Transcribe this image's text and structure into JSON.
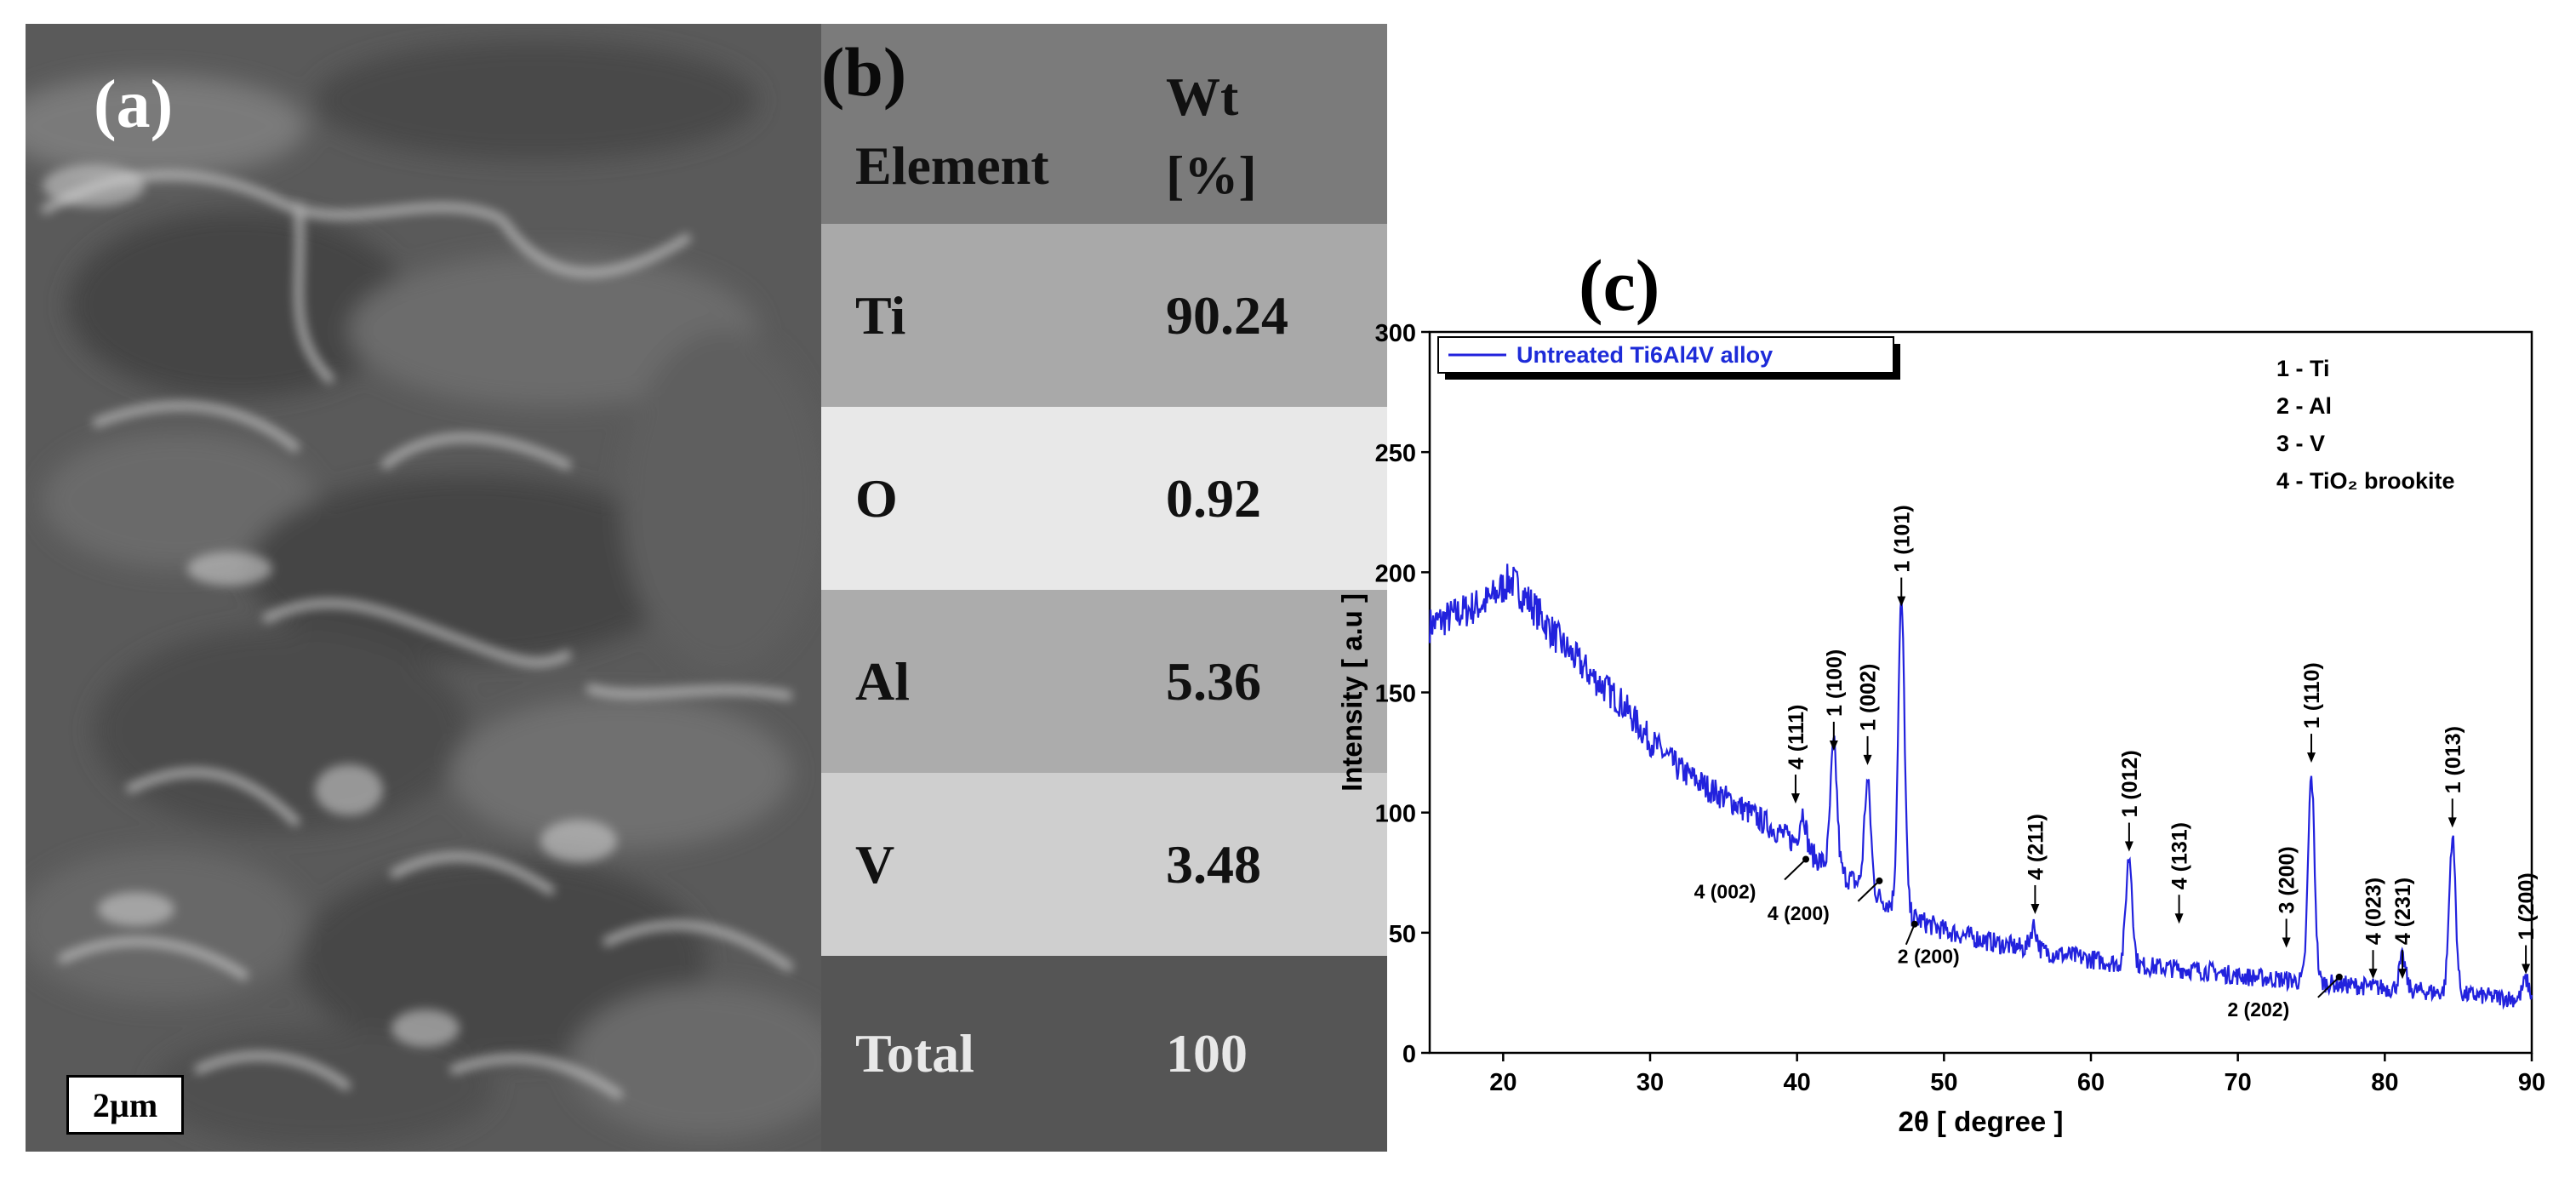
{
  "panel_a": {
    "label": "(a)",
    "scale_bar": "2µm"
  },
  "panel_b": {
    "label": "(b)",
    "header": {
      "element": "Element",
      "wt": "Wt [%]"
    },
    "rows": [
      {
        "element": "Ti",
        "wt": "90.24"
      },
      {
        "element": "O",
        "wt": "0.92"
      },
      {
        "element": "Al",
        "wt": "5.36"
      },
      {
        "element": "V",
        "wt": "3.48"
      },
      {
        "element": "Total",
        "wt": "100"
      }
    ],
    "colors": {
      "header": "#7b7b7b",
      "ti": "#a9a9a9",
      "o": "#e8e8e8",
      "al": "#acacac",
      "v": "#cfcfcf",
      "total": "#555555"
    }
  },
  "chart_data": {
    "type": "line",
    "panel_label": "(c)",
    "title": "",
    "xlabel": "2θ [ degree ]",
    "ylabel": "Intensity [ a.u ]",
    "xlim": [
      15,
      90
    ],
    "ylim": [
      0,
      300
    ],
    "xticks": [
      20,
      30,
      40,
      50,
      60,
      70,
      80,
      90
    ],
    "yticks": [
      0,
      50,
      100,
      150,
      200,
      250,
      300
    ],
    "legend": {
      "entry": "Untreated Ti6Al4V alloy",
      "placement": "top-left"
    },
    "phase_key": [
      "1 - Ti",
      "2 - Al",
      "3 - V",
      "4 - TiO₂ brookite"
    ],
    "series": [
      {
        "name": "Untreated Ti6Al4V alloy",
        "color": "#2222dd",
        "x": [
          15,
          17,
          19,
          20.5,
          22,
          24,
          26,
          28,
          30,
          32,
          34,
          36,
          38,
          40,
          42,
          44,
          46,
          48,
          50,
          52,
          54,
          56,
          58,
          60,
          62,
          64,
          66,
          68,
          70,
          72,
          74,
          76,
          78,
          80,
          82,
          84,
          86,
          88,
          90
        ],
        "values": [
          178,
          183,
          188,
          197,
          186,
          170,
          157,
          146,
          130,
          118,
          110,
          103,
          95,
          87,
          78,
          71,
          63,
          56,
          51,
          48,
          45,
          43,
          41,
          39,
          37,
          36,
          35,
          34,
          32,
          31,
          30,
          29,
          28,
          27,
          26,
          25,
          24,
          23,
          22
        ],
        "peaks": [
          {
            "x": 40.4,
            "height": 15
          },
          {
            "x": 42.5,
            "height": 52
          },
          {
            "x": 44.8,
            "height": 45
          },
          {
            "x": 47.1,
            "height": 128
          },
          {
            "x": 56.1,
            "height": 10
          },
          {
            "x": 62.6,
            "height": 45
          },
          {
            "x": 75.0,
            "height": 85
          },
          {
            "x": 81.2,
            "height": 13
          },
          {
            "x": 84.6,
            "height": 65
          },
          {
            "x": 89.6,
            "height": 8
          }
        ]
      }
    ],
    "annotations": [
      {
        "text": "1 (101)",
        "x": 47.1,
        "y": 190,
        "style": "above"
      },
      {
        "text": "1 (100)",
        "x": 42.5,
        "y": 130,
        "style": "above"
      },
      {
        "text": "1 (002)",
        "x": 44.8,
        "y": 124,
        "style": "above"
      },
      {
        "text": "4 (111)",
        "x": 39.9,
        "y": 108,
        "style": "above"
      },
      {
        "text": "4 (211)",
        "x": 56.2,
        "y": 62,
        "style": "above"
      },
      {
        "text": "1 (012)",
        "x": 62.6,
        "y": 88,
        "style": "above"
      },
      {
        "text": "4 (131)",
        "x": 66.0,
        "y": 58,
        "style": "above"
      },
      {
        "text": "1 (110)",
        "x": 75.0,
        "y": 125,
        "style": "above"
      },
      {
        "text": "3 (200)",
        "x": 73.3,
        "y": 48,
        "style": "above"
      },
      {
        "text": "4 (023)",
        "x": 79.2,
        "y": 35,
        "style": "above"
      },
      {
        "text": "4 (231)",
        "x": 81.2,
        "y": 35,
        "style": "above"
      },
      {
        "text": "1 (013)",
        "x": 84.6,
        "y": 98,
        "style": "above"
      },
      {
        "text": "1 (200)",
        "x": 89.6,
        "y": 37,
        "style": "above"
      },
      {
        "text": "4 (002)",
        "x": 40.6,
        "y": 82,
        "style": "below-left"
      },
      {
        "text": "4 (200)",
        "x": 45.6,
        "y": 73,
        "style": "below-left"
      },
      {
        "text": "2 (200)",
        "x": 48.0,
        "y": 55,
        "style": "below-right"
      },
      {
        "text": "2 (202)",
        "x": 76.9,
        "y": 33,
        "style": "below-left"
      }
    ]
  }
}
